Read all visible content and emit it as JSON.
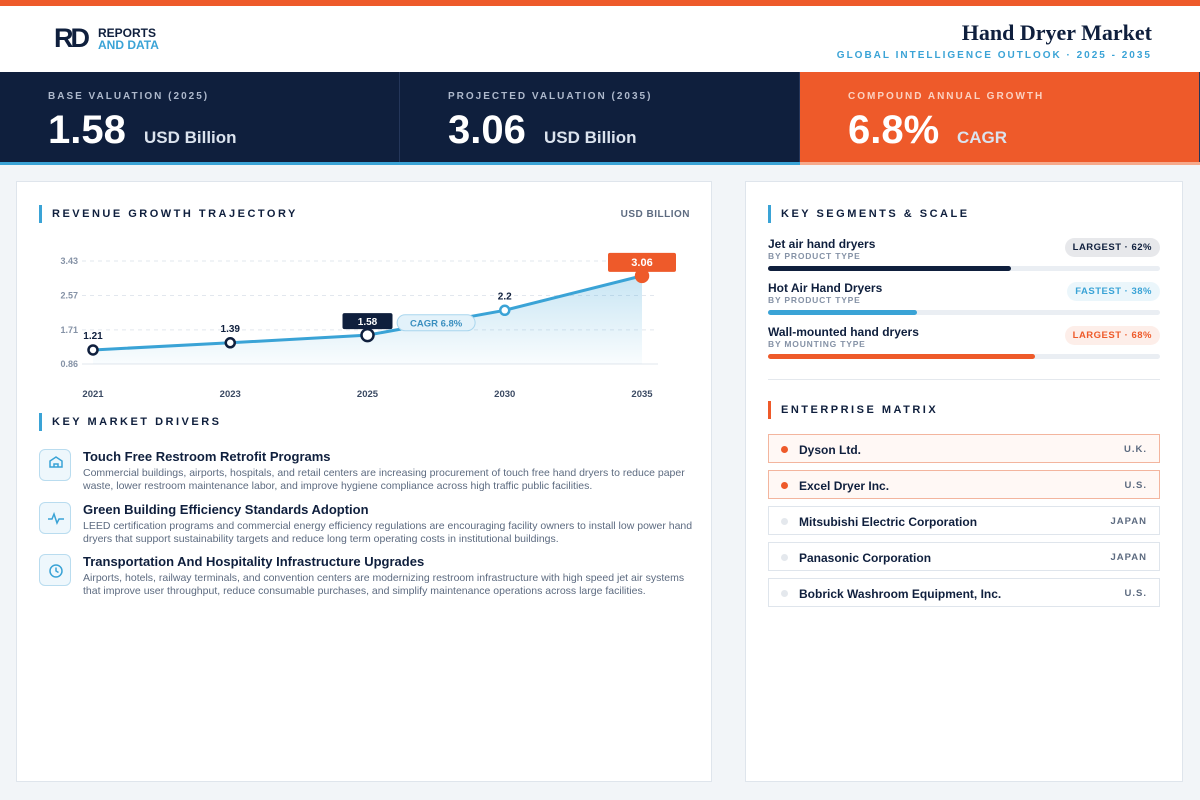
{
  "header": {
    "logo_mark": "RD",
    "logo_top": "REPORTS",
    "logo_bottom": "AND DATA",
    "title": "Hand Dryer Market",
    "subtitle": "GLOBAL INTELLIGENCE OUTLOOK · 2025 - 2035"
  },
  "kpis": [
    {
      "label": "BASE VALUATION (2025)",
      "value": "1.58",
      "unit": "USD Billion"
    },
    {
      "label": "PROJECTED VALUATION (2035)",
      "value": "3.06",
      "unit": "USD Billion"
    },
    {
      "label": "COMPOUND ANNUAL GROWTH",
      "value": "6.8%",
      "unit": "CAGR"
    }
  ],
  "chart_data": {
    "type": "line",
    "title": "REVENUE GROWTH TRAJECTORY",
    "unit_label": "USD BILLION",
    "categories": [
      "2021",
      "2023",
      "2025",
      "2030",
      "2035"
    ],
    "series": [
      {
        "name": "Revenue",
        "color": "#3aa3d6",
        "values": [
          1.21,
          1.39,
          1.58,
          2.2,
          3.06
        ]
      }
    ],
    "ylim": [
      0.86,
      3.43
    ],
    "yticks": [
      0.86,
      1.71,
      2.57,
      3.43
    ],
    "grid": true,
    "annotation": "CAGR 6.8%"
  },
  "drivers": {
    "title": "KEY MARKET DRIVERS",
    "items": [
      {
        "title": "Touch Free Restroom Retrofit Programs",
        "text": "Commercial buildings, airports, hospitals, and retail centers are increasing procurement of touch free hand dryers to reduce paper waste, lower restroom maintenance labor, and improve hygiene compliance across high traffic public facilities."
      },
      {
        "title": "Green Building Efficiency Standards Adoption",
        "text": "LEED certification programs and commercial energy efficiency regulations are encouraging facility owners to install low power hand dryers that support sustainability targets and reduce long term operating costs in institutional buildings."
      },
      {
        "title": "Transportation And Hospitality Infrastructure Upgrades",
        "text": "Airports, hotels, railway terminals, and convention centers are modernizing restroom infrastructure with high speed jet air systems that improve user throughput, reduce consumable purchases, and simplify maintenance operations across large facilities."
      }
    ]
  },
  "segments": {
    "title": "KEY SEGMENTS & SCALE",
    "items": [
      {
        "name": "Jet air hand dryers",
        "category": "BY PRODUCT TYPE",
        "badge": "LARGEST · 62%",
        "share": 62,
        "color": "#0f1f3d"
      },
      {
        "name": "Hot Air Hand Dryers",
        "category": "BY PRODUCT TYPE",
        "badge": "FASTEST · 38%",
        "share": 38,
        "color": "#3aa3d6"
      },
      {
        "name": "Wall-mounted hand dryers",
        "category": "BY MOUNTING TYPE",
        "badge": "LARGEST · 68%",
        "share": 68,
        "color": "#ee5a2a"
      }
    ]
  },
  "enterprise": {
    "title": "ENTERPRISE MATRIX",
    "items": [
      {
        "name": "Dyson Ltd.",
        "country": "U.K.",
        "highlight": true
      },
      {
        "name": "Excel Dryer Inc.",
        "country": "U.S.",
        "highlight": true
      },
      {
        "name": "Mitsubishi Electric Corporation",
        "country": "JAPAN",
        "highlight": false
      },
      {
        "name": "Panasonic Corporation",
        "country": "JAPAN",
        "highlight": false
      },
      {
        "name": "Bobrick Washroom Equipment, Inc.",
        "country": "U.S.",
        "highlight": false
      }
    ]
  }
}
